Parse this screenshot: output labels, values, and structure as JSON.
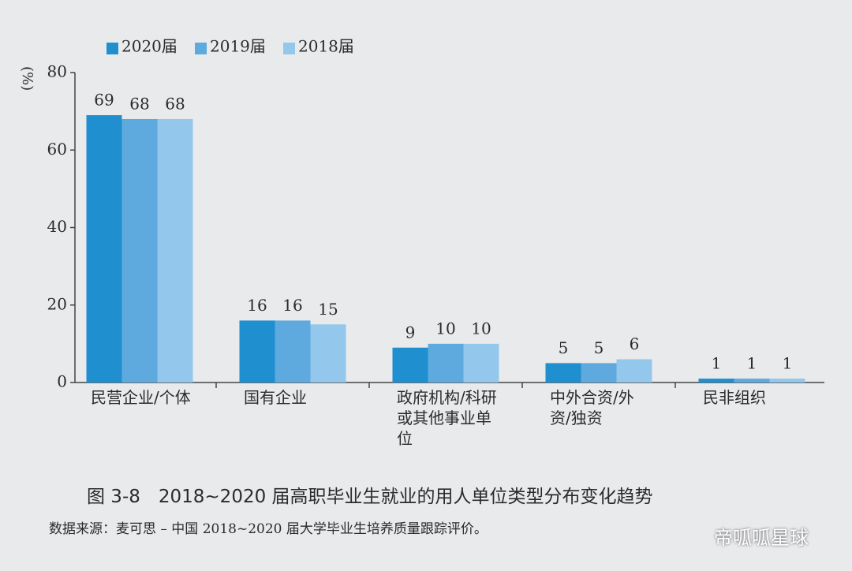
{
  "chart_data": {
    "type": "bar",
    "y_label": "(%)",
    "categories": [
      "民营企业/个体",
      "国有企业",
      "政府机构/科研或其他事业单位",
      "中外合资/外资/独资",
      "民非组织"
    ],
    "series": [
      {
        "name": "2020届",
        "color": "#1f8fd0",
        "values": [
          69,
          16,
          9,
          5,
          1
        ]
      },
      {
        "name": "2019届",
        "color": "#5eaade",
        "values": [
          68,
          16,
          10,
          5,
          1
        ]
      },
      {
        "name": "2018届",
        "color": "#93c7ec",
        "values": [
          68,
          15,
          10,
          6,
          1
        ]
      }
    ],
    "ylim": [
      0,
      80
    ],
    "yticks": [
      0,
      20,
      40,
      60,
      80
    ],
    "grid": false,
    "legend": "top-left"
  },
  "caption": "图 3-8　2018~2020 届高职毕业生就业的用人单位类型分布变化趋势",
  "source": "数据来源：麦可思 – 中国 2018~2020 届大学毕业生培养质量跟踪评价。",
  "watermark": "帝呱呱星球"
}
